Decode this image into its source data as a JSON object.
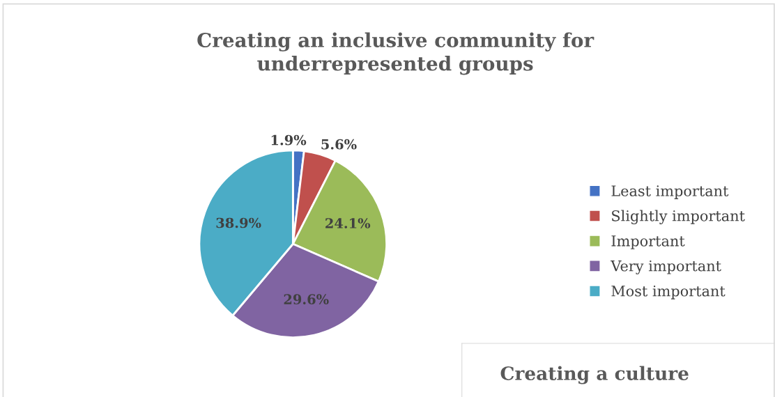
{
  "chart_data": [
    {
      "type": "pie",
      "title": "Creating an inclusive community for\nunderrepresented groups",
      "categories": [
        "Least important",
        "Slightly important",
        "Important",
        "Very important",
        "Most important"
      ],
      "values": [
        1.9,
        5.6,
        24.1,
        29.6,
        38.9
      ],
      "colors": [
        "#4472c4",
        "#c0504d",
        "#9bbb59",
        "#8064a2",
        "#4bacc6"
      ],
      "value_labels": [
        "1.9%",
        "5.6%",
        "24.1%",
        "29.6%",
        "38.9%"
      ],
      "legend": "right"
    },
    {
      "type": "other",
      "title": "Creating a culture"
    }
  ]
}
